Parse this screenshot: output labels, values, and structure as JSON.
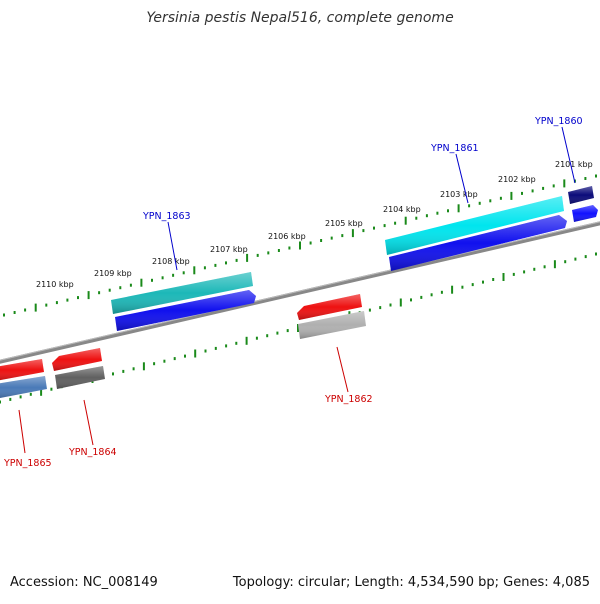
{
  "title": "Yersinia pestis Nepal516, complete genome",
  "footer": {
    "accession": "Accession: NC_008149",
    "summary": "Topology: circular; Length: 4,534,590 bp; Genes: 4,085"
  },
  "colors": {
    "backbone": "#808080",
    "tick": "#1a8a1a",
    "forward_label": "#0000cc",
    "reverse_label": "#cc0000"
  },
  "ruler": {
    "labels": [
      "2101 kbp",
      "2102 kbp",
      "2103 kbp",
      "2104 kbp",
      "2105 kbp",
      "2106 kbp",
      "2107 kbp",
      "2108 kbp",
      "2109 kbp",
      "2110 kbp"
    ]
  },
  "genes": [
    {
      "label": "YPN_1860",
      "strand": "forward",
      "colors": [
        "#0b0b7a",
        "#1111ff"
      ]
    },
    {
      "label": "YPN_1861",
      "strand": "forward",
      "colors": [
        "#00e5ee",
        "#1010ee"
      ]
    },
    {
      "label": "YPN_1863",
      "strand": "forward",
      "colors": [
        "#1cb8b8",
        "#1010ee"
      ]
    },
    {
      "label": "YPN_1862",
      "strand": "reverse",
      "colors": [
        "#ee1111",
        "#b0b0b0"
      ]
    },
    {
      "label": "YPN_1864",
      "strand": "reverse",
      "colors": [
        "#ee1111",
        "#606060"
      ]
    },
    {
      "label": "YPN_1865",
      "strand": "reverse",
      "colors": [
        "#ee1111",
        "#4a7ab8"
      ]
    }
  ]
}
